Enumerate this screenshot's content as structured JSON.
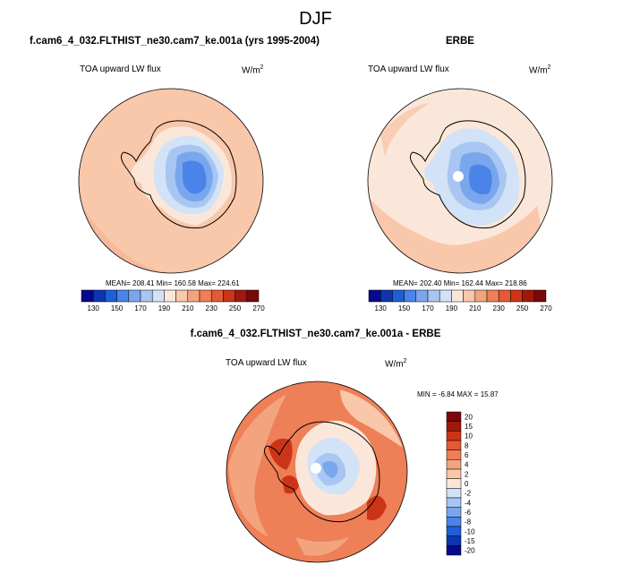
{
  "figure_title": "DJF",
  "chart_data": [
    {
      "type": "polar-contour-map",
      "title": "f.cam6_4_032.FLTHIST_ne30.cam7_ke.001a (yrs 1995-2004)",
      "variable": "TOA upward LW flux",
      "units_base": "W/m",
      "units_exp": "2",
      "stats_text": "MEAN= 208.41  Min= 160.58  Max= 224.61",
      "stats": {
        "mean": 208.41,
        "min": 160.58,
        "max": 224.61
      },
      "colorbar_levels": [
        130,
        140,
        150,
        160,
        170,
        180,
        190,
        200,
        210,
        220,
        230,
        240,
        250,
        260,
        270
      ],
      "colorbar_labels": [
        "130",
        "150",
        "170",
        "190",
        "210",
        "230",
        "250",
        "270"
      ]
    },
    {
      "type": "polar-contour-map",
      "title": "ERBE",
      "variable": "TOA upward LW flux",
      "units_base": "W/m",
      "units_exp": "2",
      "stats_text": "MEAN= 202.40  Min= 162.44  Max= 218.86",
      "stats": {
        "mean": 202.4,
        "min": 162.44,
        "max": 218.86
      },
      "colorbar_levels": [
        130,
        140,
        150,
        160,
        170,
        180,
        190,
        200,
        210,
        220,
        230,
        240,
        250,
        260,
        270
      ],
      "colorbar_labels": [
        "130",
        "150",
        "170",
        "190",
        "210",
        "230",
        "250",
        "270"
      ]
    },
    {
      "type": "polar-contour-map",
      "title": "f.cam6_4_032.FLTHIST_ne30.cam7_ke.001a - ERBE",
      "variable": "TOA upward LW flux",
      "units_base": "W/m",
      "units_exp": "2",
      "stats_text": "MIN =  -6.84 MAX =  15.87",
      "stats": {
        "min": -6.84,
        "max": 15.87
      },
      "colorbar_levels": [
        -20,
        -15,
        -10,
        -8,
        -6,
        -4,
        -2,
        0,
        2,
        4,
        6,
        8,
        10,
        15,
        20
      ],
      "colorbar_labels": [
        "20",
        "15",
        "10",
        "8",
        "6",
        "4",
        "2",
        "0",
        "-2",
        "-4",
        "-6",
        "-8",
        "-10",
        "-15",
        "-20"
      ]
    }
  ],
  "colors": {
    "abs_scale": [
      "#08088c",
      "#0d35b0",
      "#1e5fd8",
      "#4a84e8",
      "#7aa6ee",
      "#a8c6f2",
      "#d2e2f7",
      "#fbe7d9",
      "#f9c7aa",
      "#f4a37f",
      "#ee7f57",
      "#e45a35",
      "#cc3418",
      "#a0180c",
      "#7a0808"
    ],
    "diff_scale": [
      "#7a0808",
      "#a0180c",
      "#cc3418",
      "#e45a35",
      "#ee7f57",
      "#f4a37f",
      "#f9c7aa",
      "#fbe7d9",
      "#d2e2f7",
      "#a8c6f2",
      "#7aa6ee",
      "#4a84e8",
      "#1e5fd8",
      "#0d35b0",
      "#08088c"
    ]
  }
}
